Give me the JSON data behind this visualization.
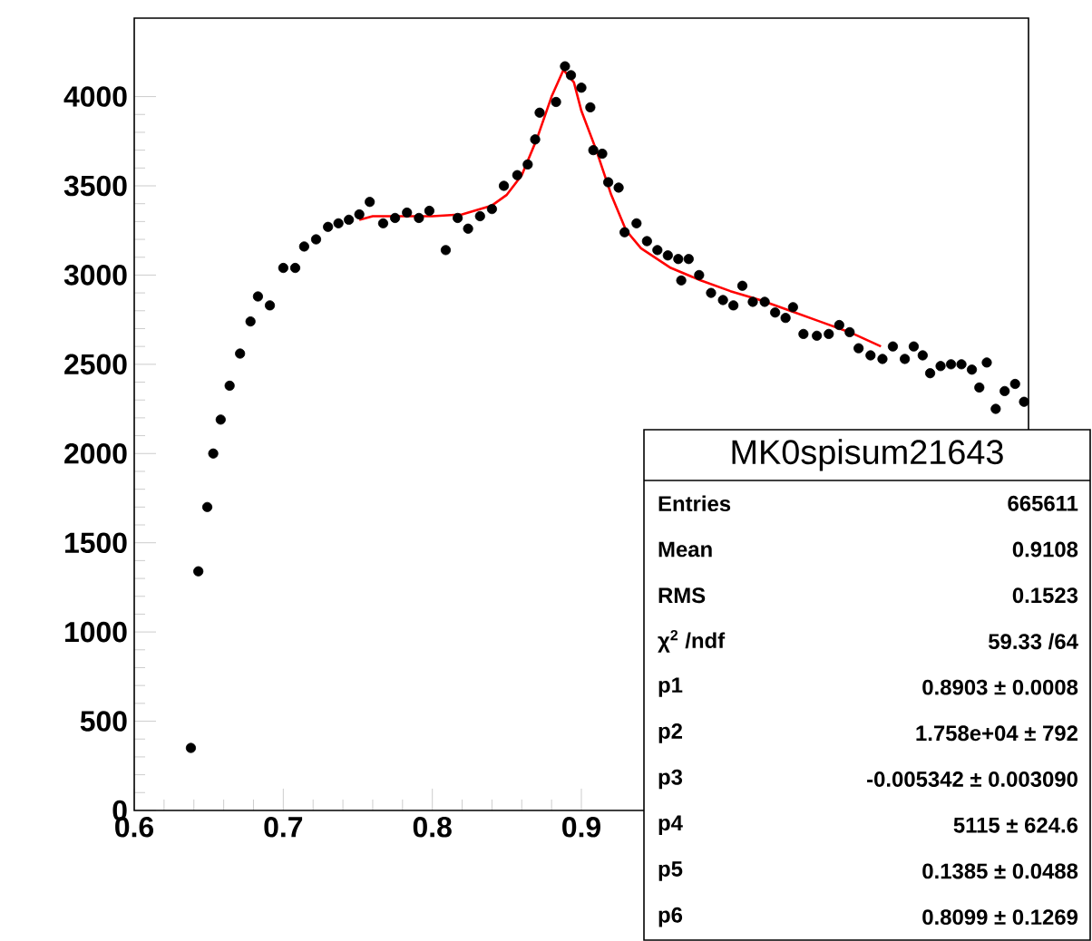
{
  "chart_data": {
    "type": "scatter",
    "xlim": [
      0.6,
      1.2
    ],
    "ylim": [
      0,
      4440
    ],
    "xticks": [
      0.6,
      0.7,
      0.8,
      0.9
    ],
    "yticks": [
      0,
      500,
      1000,
      1500,
      2000,
      2500,
      3000,
      3500,
      4000
    ],
    "series": [
      {
        "marker": "circle",
        "color": "#000000",
        "x": [
          0.638,
          0.643,
          0.649,
          0.653,
          0.658,
          0.664,
          0.671,
          0.678,
          0.683,
          0.691,
          0.7,
          0.708,
          0.714,
          0.722,
          0.73,
          0.737,
          0.744,
          0.751,
          0.758,
          0.767,
          0.775,
          0.783,
          0.791,
          0.798,
          0.809,
          0.817,
          0.824,
          0.832,
          0.84,
          0.848,
          0.857,
          0.864,
          0.869,
          0.872,
          0.883,
          0.889,
          0.893,
          0.9,
          0.906,
          0.908,
          0.914,
          0.918,
          0.925,
          0.929,
          0.937,
          0.944,
          0.951,
          0.958,
          0.965,
          0.967,
          0.972,
          0.979,
          0.987,
          0.995,
          1.002,
          1.008,
          1.015,
          1.023,
          1.03,
          1.037,
          1.042,
          1.049,
          1.058,
          1.066,
          1.073,
          1.08,
          1.086,
          1.094,
          1.102,
          1.109,
          1.117,
          1.123,
          1.129,
          1.134,
          1.141,
          1.148,
          1.155,
          1.162,
          1.167,
          1.172,
          1.178,
          1.184,
          1.191,
          1.197
        ],
        "values": [
          350,
          1340,
          1700,
          2000,
          2190,
          2380,
          2560,
          2740,
          2880,
          2830,
          3040,
          3040,
          3160,
          3200,
          3270,
          3290,
          3310,
          3340,
          3410,
          3290,
          3320,
          3350,
          3320,
          3360,
          3140,
          3320,
          3260,
          3330,
          3370,
          3500,
          3560,
          3620,
          3760,
          3910,
          3970,
          4170,
          4120,
          4050,
          3940,
          3700,
          3680,
          3520,
          3490,
          3240,
          3290,
          3190,
          3140,
          3110,
          3090,
          2970,
          3090,
          3000,
          2900,
          2860,
          2830,
          2940,
          2850,
          2850,
          2790,
          2760,
          2820,
          2670,
          2660,
          2670,
          2720,
          2680,
          2590,
          2550,
          2530,
          2600,
          2530,
          2600,
          2550,
          2450,
          2490,
          2500,
          2500,
          2470,
          2370,
          2510,
          2250,
          2350,
          2390,
          2290
        ]
      },
      {
        "type": "line",
        "marker": "none",
        "line_style": "solid",
        "color": "#ff0000",
        "x": [
          0.751,
          0.76,
          0.78,
          0.8,
          0.82,
          0.84,
          0.85,
          0.86,
          0.87,
          0.88,
          0.888,
          0.895,
          0.9,
          0.91,
          0.92,
          0.93,
          0.94,
          0.96,
          0.98,
          1.0,
          1.02,
          1.04,
          1.06,
          1.08,
          1.101
        ],
        "values": [
          3310,
          3330,
          3330,
          3330,
          3340,
          3390,
          3450,
          3560,
          3760,
          4000,
          4150,
          4080,
          3920,
          3700,
          3450,
          3250,
          3150,
          3040,
          2970,
          2910,
          2860,
          2800,
          2740,
          2680,
          2600
        ]
      }
    ],
    "annotations": [
      "MK0spisum21643",
      "Entries",
      "665611",
      "Mean",
      "0.9108",
      "RMS",
      "0.1523",
      "χ$^{2}$ /ndf",
      "59.33 /64",
      "p1",
      "0.8903 ± 0.0008",
      "p2",
      "1.758e+04 ± 792",
      "p3",
      "-0.005342 ± 0.003090",
      "p4",
      "5115 ± 624.6",
      "p5",
      "0.1385 ± 0.0488",
      "p6",
      "0.8099 ± 0.1269"
    ]
  }
}
